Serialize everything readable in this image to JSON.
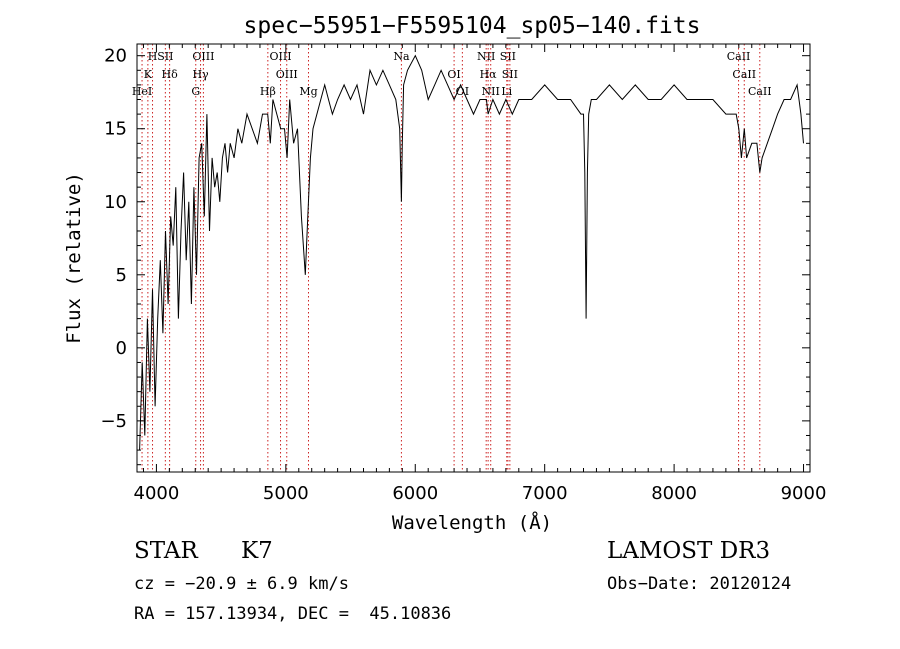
{
  "chart_data": {
    "type": "line",
    "title": "spec−55951−F5595104_sp05−140.fits",
    "xlabel": "Wavelength (Å)",
    "ylabel": "Flux (relative)",
    "xlim": [
      3850,
      9050
    ],
    "ylim": [
      -8.5,
      20.8
    ],
    "grid": false,
    "x_ticks": [
      {
        "value": 4000,
        "label": "4000"
      },
      {
        "value": 5000,
        "label": "5000"
      },
      {
        "value": 6000,
        "label": "6000"
      },
      {
        "value": 7000,
        "label": "7000"
      },
      {
        "value": 8000,
        "label": "8000"
      },
      {
        "value": 9000,
        "label": "9000"
      }
    ],
    "y_ticks": [
      {
        "value": -5,
        "label": "−5"
      },
      {
        "value": 0,
        "label": "0"
      },
      {
        "value": 5,
        "label": "5"
      },
      {
        "value": 10,
        "label": "10"
      },
      {
        "value": 15,
        "label": "15"
      },
      {
        "value": 20,
        "label": "20"
      }
    ],
    "series": [
      {
        "name": "flux",
        "color": "#000000",
        "x": [
          3870,
          3890,
          3910,
          3930,
          3950,
          3970,
          3990,
          4010,
          4030,
          4050,
          4070,
          4090,
          4110,
          4130,
          4150,
          4170,
          4190,
          4210,
          4230,
          4250,
          4270,
          4290,
          4310,
          4330,
          4350,
          4370,
          4390,
          4410,
          4430,
          4450,
          4470,
          4490,
          4510,
          4530,
          4550,
          4570,
          4600,
          4630,
          4660,
          4700,
          4740,
          4780,
          4820,
          4860,
          4880,
          4900,
          4930,
          4960,
          4990,
          5010,
          5030,
          5060,
          5090,
          5120,
          5150,
          5170,
          5180,
          5190,
          5210,
          5240,
          5270,
          5300,
          5330,
          5360,
          5400,
          5450,
          5500,
          5550,
          5600,
          5650,
          5700,
          5750,
          5800,
          5850,
          5880,
          5893,
          5900,
          5910,
          5940,
          6000,
          6050,
          6100,
          6150,
          6200,
          6250,
          6300,
          6350,
          6400,
          6450,
          6500,
          6550,
          6563,
          6600,
          6650,
          6700,
          6750,
          6800,
          6900,
          7000,
          7100,
          7200,
          7280,
          7300,
          7310,
          7320,
          7330,
          7340,
          7360,
          7400,
          7500,
          7600,
          7700,
          7800,
          7900,
          8000,
          8100,
          8200,
          8300,
          8400,
          8480,
          8500,
          8520,
          8542,
          8560,
          8600,
          8640,
          8662,
          8680,
          8720,
          8760,
          8800,
          8850,
          8900,
          8950,
          8980,
          9000
        ],
        "values": [
          -7,
          -1,
          -6,
          2,
          -3,
          4,
          -4,
          2,
          6,
          1,
          8,
          3,
          9,
          7,
          11,
          2,
          8,
          12,
          6,
          10,
          3,
          11,
          5,
          13,
          14,
          9,
          16,
          8,
          13,
          11,
          12,
          10,
          13,
          14,
          12,
          14,
          13,
          15,
          14,
          16,
          15,
          14,
          16,
          16,
          14,
          17,
          16,
          15,
          15,
          13,
          17,
          14,
          15,
          9,
          5,
          9,
          11,
          13,
          15,
          16,
          17,
          18,
          17,
          16,
          17,
          18,
          17,
          18,
          16,
          19,
          18,
          19,
          18,
          17,
          15,
          10,
          14,
          18,
          19,
          20,
          19,
          17,
          18,
          19,
          18,
          17,
          18,
          17,
          16,
          17,
          17,
          16,
          17,
          16,
          17,
          16,
          17,
          17,
          18,
          17,
          17,
          16,
          16,
          12,
          2,
          12,
          16,
          17,
          17,
          18,
          17,
          18,
          17,
          17,
          18,
          17,
          17,
          17,
          16,
          16,
          15,
          13,
          15,
          13,
          14,
          14,
          12,
          13,
          14,
          15,
          16,
          17,
          17,
          18,
          16,
          14
        ]
      }
    ],
    "lines": [
      {
        "label": "H",
        "wavelength": 3970
      },
      {
        "label": "K",
        "wavelength": 3934
      },
      {
        "label": "HeI",
        "wavelength": 3889
      },
      {
        "label": "SII",
        "wavelength": 4069
      },
      {
        "label": "Hδ",
        "wavelength": 4102
      },
      {
        "label": "G",
        "wavelength": 4304
      },
      {
        "label": "OIII",
        "wavelength": 4363
      },
      {
        "label": "Hγ",
        "wavelength": 4341
      },
      {
        "label": "Hβ",
        "wavelength": 4861
      },
      {
        "label": "OIII",
        "wavelength": 4959
      },
      {
        "label": "OIII",
        "wavelength": 5007
      },
      {
        "label": "Mg",
        "wavelength": 5175
      },
      {
        "label": "Na",
        "wavelength": 5893
      },
      {
        "label": "OI",
        "wavelength": 6300
      },
      {
        "label": "OI",
        "wavelength": 6364
      },
      {
        "label": "NII",
        "wavelength": 6548
      },
      {
        "label": "Hα",
        "wavelength": 6563
      },
      {
        "label": "NII",
        "wavelength": 6583
      },
      {
        "label": "SII",
        "wavelength": 6716
      },
      {
        "label": "SII",
        "wavelength": 6731
      },
      {
        "label": "Li",
        "wavelength": 6707
      },
      {
        "label": "CaII",
        "wavelength": 8498
      },
      {
        "label": "CaII",
        "wavelength": 8542
      },
      {
        "label": "CaII",
        "wavelength": 8662
      }
    ]
  },
  "info": {
    "object_class": "STAR",
    "subclass": "K7",
    "survey": "LAMOST DR3",
    "redshift": "cz = −20.9 ± 6.9 km/s",
    "obs_date": "Obs−Date: 20120124",
    "coords": "RA = 157.13934, DEC =  45.10836"
  },
  "colors": {
    "spectrum": "#000000",
    "line_marker": "#cc2222",
    "axis": "#000000",
    "background": "#ffffff"
  }
}
